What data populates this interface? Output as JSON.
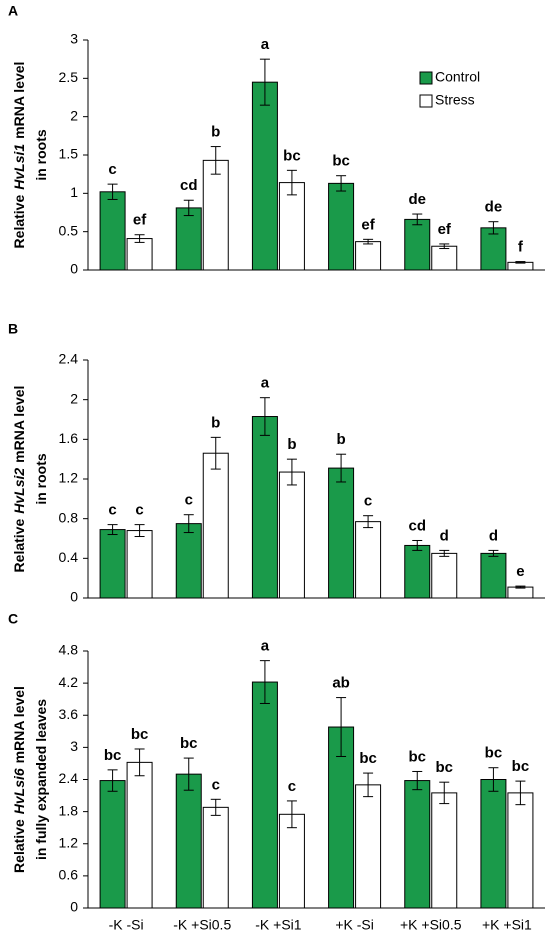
{
  "chart_data": [
    {
      "type": "bar",
      "panel": "A",
      "ylabel": [
        [
          "Relative",
          "HvLsi1",
          "mRNA level"
        ],
        [
          "in roots"
        ]
      ],
      "ylabel_italic_index": 1,
      "categories": [
        null,
        null,
        null,
        null,
        null,
        null
      ],
      "series": [
        {
          "name": "Control",
          "color": "#1a9a4a",
          "values": [
            1.02,
            0.81,
            2.45,
            1.13,
            0.66,
            0.55
          ],
          "errors": [
            0.1,
            0.1,
            0.3,
            0.1,
            0.07,
            0.08
          ],
          "labels": [
            "c",
            "cd",
            "a",
            "bc",
            "de",
            "de"
          ]
        },
        {
          "name": "Stress",
          "color": "#ffffff",
          "values": [
            0.41,
            1.43,
            1.14,
            0.37,
            0.31,
            0.1
          ],
          "errors": [
            0.05,
            0.18,
            0.16,
            0.03,
            0.03,
            0.01
          ],
          "labels": [
            "ef",
            "b",
            "bc",
            "ef",
            "ef",
            "f"
          ]
        }
      ],
      "ylim": [
        0,
        3
      ],
      "yticks": [
        0,
        0.5,
        1,
        1.5,
        2,
        2.5,
        3
      ],
      "legend": "upper right"
    },
    {
      "type": "bar",
      "panel": "B",
      "ylabel": [
        [
          "Relative",
          "HvLsi2",
          "mRNA level"
        ],
        [
          "in roots"
        ]
      ],
      "ylabel_italic_index": 1,
      "categories": [
        null,
        null,
        null,
        null,
        null,
        null
      ],
      "series": [
        {
          "color": "#1a9a4a",
          "values": [
            0.69,
            0.75,
            1.83,
            1.31,
            0.53,
            0.45
          ],
          "errors": [
            0.05,
            0.09,
            0.19,
            0.14,
            0.05,
            0.03
          ],
          "labels": [
            "c",
            "c",
            "a",
            "b",
            "cd",
            "d"
          ]
        },
        {
          "color": "#ffffff",
          "values": [
            0.68,
            1.46,
            1.27,
            0.77,
            0.45,
            0.11
          ],
          "errors": [
            0.06,
            0.16,
            0.13,
            0.06,
            0.03,
            0.01
          ],
          "labels": [
            "c",
            "b",
            "b",
            "c",
            "d",
            "e"
          ]
        }
      ],
      "ylim": [
        0,
        2.4
      ],
      "yticks": [
        0,
        0.4,
        0.8,
        1.2,
        1.6,
        2,
        2.4
      ]
    },
    {
      "type": "bar",
      "panel": "C",
      "ylabel": [
        [
          "Relative",
          "HvLsi6",
          "mRNA level"
        ],
        [
          "in fully expanded leaves"
        ]
      ],
      "ylabel_italic_index": 1,
      "categories": [
        "-K -Si",
        "-K +Si0.5",
        "-K +Si1",
        "+K -Si",
        "+K +Si0.5",
        "+K +Si1"
      ],
      "series": [
        {
          "color": "#1a9a4a",
          "values": [
            2.38,
            2.5,
            4.22,
            3.38,
            2.38,
            2.4
          ],
          "errors": [
            0.2,
            0.3,
            0.4,
            0.55,
            0.17,
            0.22
          ],
          "labels": [
            "bc",
            "bc",
            "a",
            "ab",
            "bc",
            "bc"
          ]
        },
        {
          "color": "#ffffff",
          "values": [
            2.72,
            1.88,
            1.75,
            2.3,
            2.15,
            2.15
          ],
          "errors": [
            0.25,
            0.15,
            0.25,
            0.22,
            0.2,
            0.22
          ],
          "labels": [
            "bc",
            "c",
            "c",
            "bc",
            "bc",
            "bc"
          ]
        }
      ],
      "ylim": [
        0,
        4.8
      ],
      "yticks": [
        0,
        0.6,
        1.2,
        1.8,
        2.4,
        3,
        3.6,
        4.2,
        4.8
      ]
    }
  ]
}
